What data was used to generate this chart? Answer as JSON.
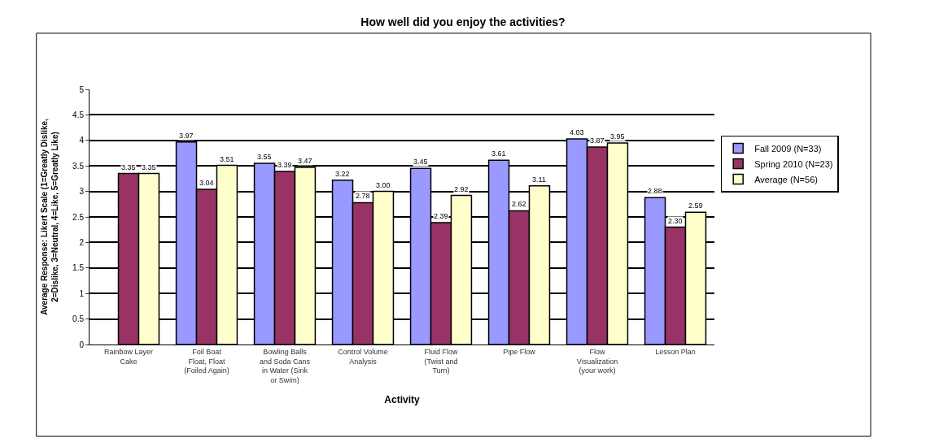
{
  "chart_data": {
    "type": "bar",
    "title": "How well did you enjoy the activities?",
    "xlabel": "Activity",
    "ylabel": "Average Response: Likert Scale (1=Greatly Dislike, 2=Dislike, 3=Neutral, 4=Like, 5=Greatly Like)",
    "categories": [
      "Rainbow Layer Cake",
      "Foil Boat Float, Float (Foiled Again)",
      "Bowling Balls and Soda Cans in Water (Sink or Swim)",
      "Control Volume Analysis",
      "Fluid Flow (Twist and Turn)",
      "Pipe Flow",
      "Flow Visualization (your work)",
      "Lesson Plan"
    ],
    "series": [
      {
        "name": "Fall 2009 (N=33)",
        "color": "#9999ff",
        "values": [
          null,
          3.97,
          3.55,
          3.22,
          3.45,
          3.61,
          4.03,
          2.88
        ],
        "value_labels": [
          null,
          "3.97",
          "3.55",
          "3.22",
          "3.45",
          "3.61",
          "4.03",
          "2.88"
        ]
      },
      {
        "name": "Spring 2010 (N=23)",
        "color": "#993366",
        "values": [
          3.35,
          3.04,
          3.39,
          2.78,
          2.39,
          2.62,
          3.87,
          2.3
        ],
        "value_labels": [
          "3.35",
          "3.04",
          "3.39",
          "2.78",
          "2.39",
          "2.62",
          "3.87",
          "2.30"
        ]
      },
      {
        "name": "Average (N=56)",
        "color": "#ffffcc",
        "values": [
          3.35,
          3.51,
          3.47,
          3.0,
          2.92,
          3.11,
          3.95,
          2.59
        ],
        "value_labels": [
          "3.35",
          "3.51",
          "3.47",
          "3.00",
          "2.92",
          "3.11",
          "3.95",
          "2.59"
        ]
      }
    ],
    "ylim": [
      0,
      5
    ],
    "yticks": [
      0,
      0.5,
      1,
      1.5,
      2,
      2.5,
      3,
      3.5,
      4,
      4.5,
      5
    ],
    "grid": "y",
    "legend": "right"
  }
}
